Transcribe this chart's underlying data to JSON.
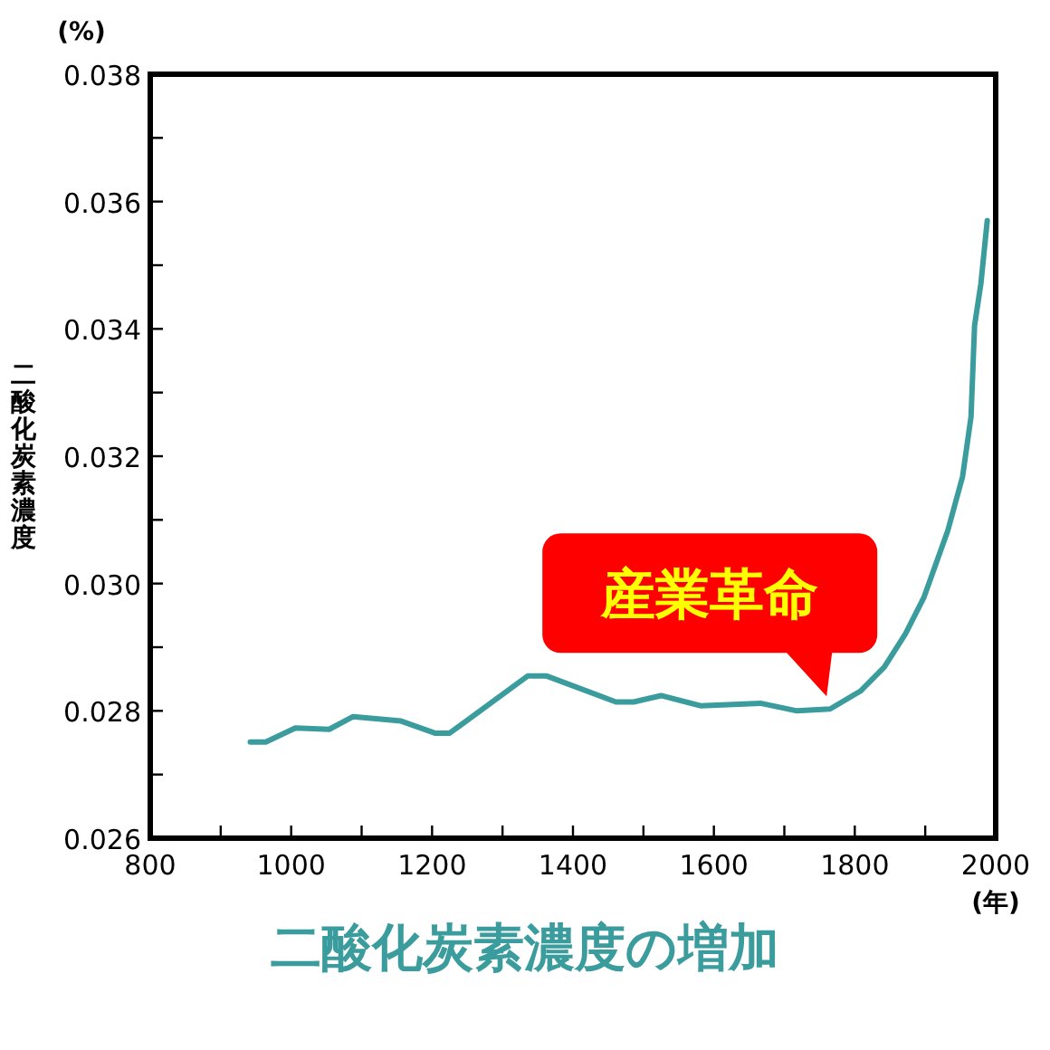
{
  "chart_data": {
    "type": "line",
    "title": "二酸化炭素濃度の増加",
    "xlabel": "(年)",
    "ylabel": "二酸化炭素濃度",
    "annotations": [
      "(%)",
      {
        "text": "産業革命",
        "x": 1760,
        "y": 0.028
      }
    ],
    "xlim": [
      800,
      2000
    ],
    "ylim": [
      0.026,
      0.038
    ],
    "xticks": [
      800,
      {
        "value": 900,
        "label": null
      },
      1000,
      {
        "value": 1100,
        "label": null
      },
      1200,
      {
        "value": 1300,
        "label": null
      },
      1400,
      {
        "value": 1500,
        "label": null
      },
      1600,
      {
        "value": 1700,
        "label": null
      },
      1800,
      {
        "value": 1900,
        "label": null
      },
      2000
    ],
    "yticks": [
      {
        "value": 0.026,
        "label": "0.026"
      },
      {
        "value": 0.027,
        "label": null
      },
      {
        "value": 0.028,
        "label": "0.028"
      },
      {
        "value": 0.029,
        "label": null
      },
      {
        "value": 0.03,
        "label": "0.030"
      },
      {
        "value": 0.031,
        "label": null
      },
      {
        "value": 0.032,
        "label": "0.032"
      },
      {
        "value": 0.033,
        "label": null
      },
      {
        "value": 0.034,
        "label": "0.034"
      },
      {
        "value": 0.035,
        "label": null
      },
      {
        "value": 0.036,
        "label": "0.036"
      },
      {
        "value": 0.037,
        "label": null
      },
      {
        "value": 0.038,
        "label": "0.038"
      }
    ],
    "grid": false,
    "marker": "none",
    "line_style": "solid",
    "series": [
      {
        "color": "#3a9c9c",
        "x": [
          942,
          964,
          1006,
          1054,
          1088,
          1156,
          1204,
          1225,
          1336,
          1362,
          1461,
          1486,
          1525,
          1581,
          1666,
          1718,
          1765,
          1808,
          1842,
          1872,
          1898,
          1932,
          1953,
          1965,
          1970,
          1979,
          1988
        ],
        "values": [
          0.02751,
          0.02751,
          0.02773,
          0.02771,
          0.02791,
          0.02784,
          0.02765,
          0.02765,
          0.02855,
          0.02855,
          0.02814,
          0.02814,
          0.02824,
          0.02808,
          0.02812,
          0.028,
          0.02803,
          0.02831,
          0.02869,
          0.02921,
          0.02978,
          0.03083,
          0.03168,
          0.03262,
          0.03405,
          0.03471,
          0.0357
        ]
      }
    ]
  }
}
